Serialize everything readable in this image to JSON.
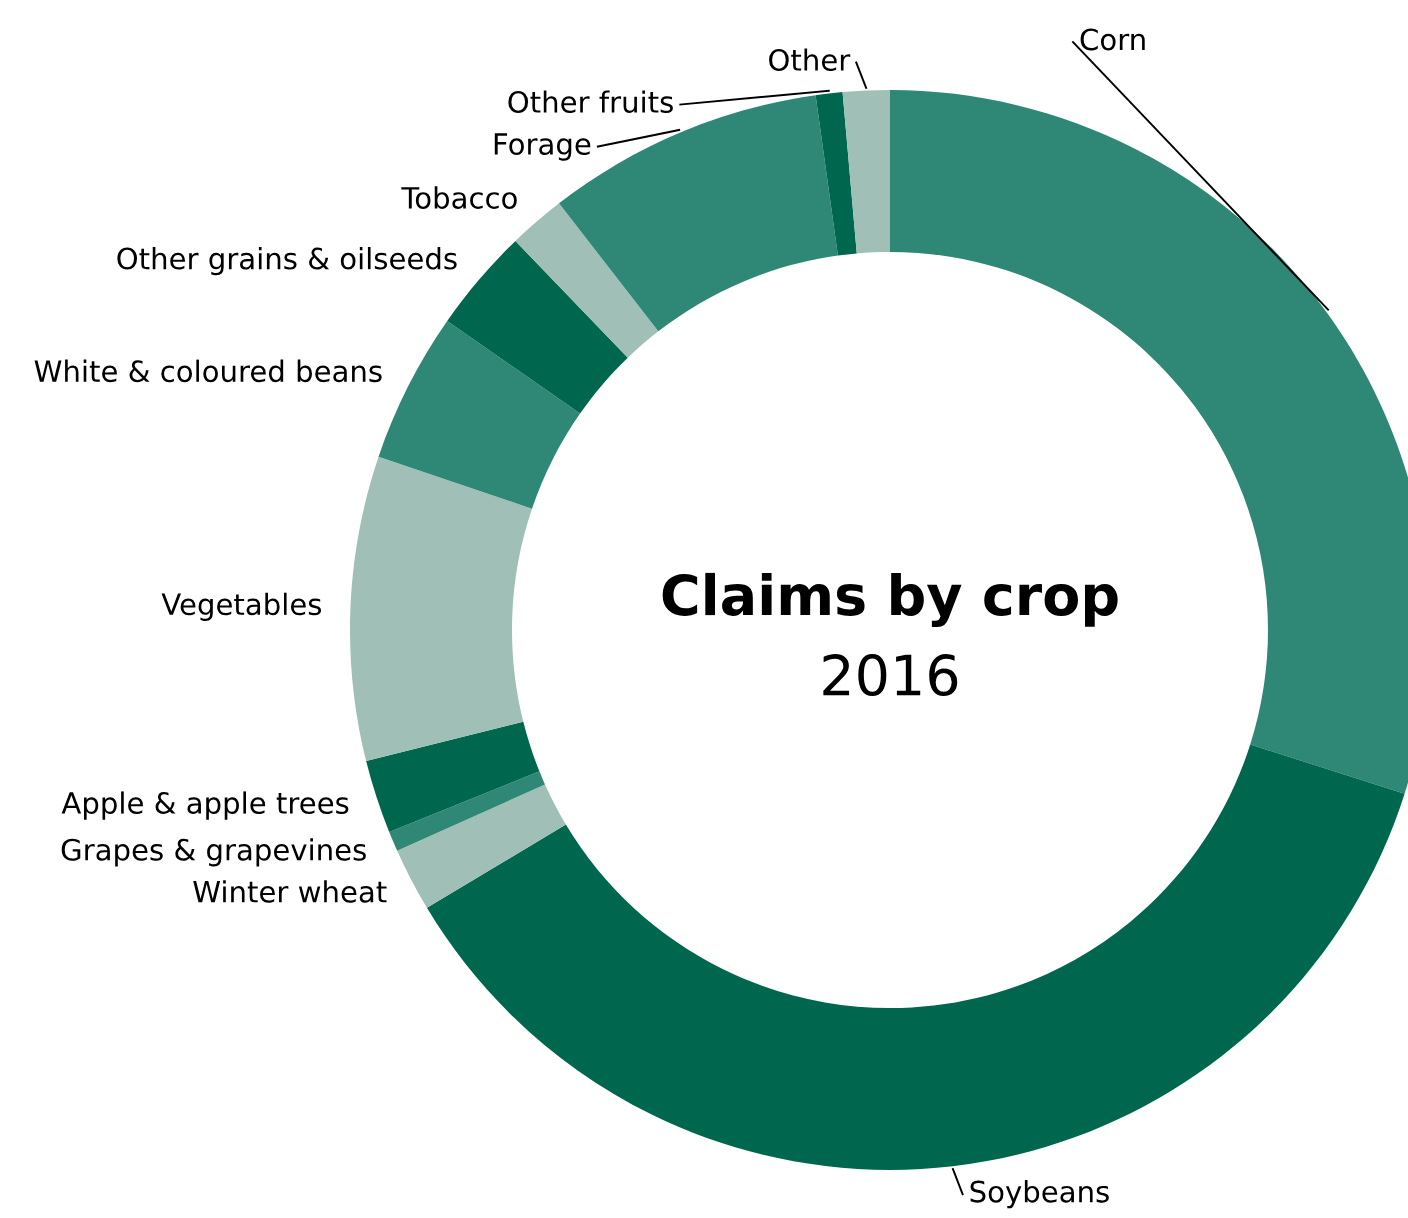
{
  "chart_data": {
    "type": "donut",
    "title": "Claims by crop",
    "subtitle": "2016",
    "categories": [
      "Corn",
      "Soybeans",
      "Winter wheat",
      "Grapes & grapevines",
      "Apple & apple trees",
      "Vegetables",
      "White & coloured beans",
      "Other grains & oilseeds",
      "Tobacco",
      "Forage",
      "Other fruits",
      "Other"
    ],
    "values": [
      29.9,
      36.5,
      1.9,
      0.6,
      2.2,
      9.1,
      4.5,
      3.1,
      1.7,
      8.3,
      0.8,
      1.4
    ],
    "colors": [
      "#2e8875",
      "#00674f",
      "#9fbfb7",
      "#2e8875",
      "#00674f",
      "#9fbfb7",
      "#2e8875",
      "#00674f",
      "#9fbfb7",
      "#2e8875",
      "#00674f",
      "#9fbfb7"
    ],
    "legend": false
  }
}
